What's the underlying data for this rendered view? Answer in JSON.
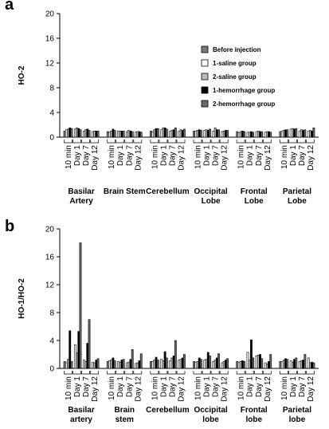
{
  "chart_data": [
    {
      "type": "bar",
      "panel": "a",
      "ylabel": "HO-2",
      "ylim": [
        0,
        20
      ],
      "yticks": [
        0,
        4,
        8,
        12,
        16,
        20
      ],
      "legend": "upper right",
      "groups": [
        "Basilar\nArtery",
        "Brain Stem",
        "Cerebellum",
        "Occipital\nLobe",
        "Frontal\nLobe",
        "Parietal\nLobe"
      ],
      "categories": [
        "10 min",
        "Day 1",
        "Day 7",
        "Day 12",
        "10 min",
        "Day 1",
        "Day 7",
        "Day 12",
        "10 min",
        "Day 1",
        "Day 7",
        "Day 12",
        "10 min",
        "Day 1",
        "Day 7",
        "Day 12",
        "10 min",
        "Day 1",
        "Day 7",
        "Day 12",
        "10 min",
        "Day 1",
        "Day 7",
        "Day 12"
      ],
      "series": [
        {
          "name": "Before injection",
          "color": "#7a7a7a",
          "values": [
            1.0,
            null,
            null,
            null,
            0.9,
            null,
            null,
            null,
            1.0,
            null,
            null,
            null,
            1.0,
            null,
            null,
            null,
            0.9,
            null,
            null,
            null,
            0.9,
            null,
            null,
            null
          ]
        },
        {
          "name": "1-saline group",
          "color": "#ffffff",
          "values": [
            1.2,
            1.3,
            1.0,
            0.9,
            0.8,
            1.0,
            0.9,
            0.8,
            0.8,
            1.2,
            1.0,
            1.0,
            1.0,
            1.1,
            1.0,
            0.9,
            0.7,
            0.8,
            0.9,
            0.8,
            1.0,
            1.3,
            1.0,
            1.0
          ]
        },
        {
          "name": "2-saline group",
          "color": "#bdbdbd",
          "values": [
            1.3,
            1.5,
            1.2,
            1.0,
            1.0,
            1.0,
            1.1,
            0.9,
            1.2,
            1.5,
            1.1,
            1.2,
            1.1,
            1.2,
            1.5,
            1.0,
            0.9,
            0.8,
            1.0,
            0.9,
            1.1,
            1.4,
            1.2,
            1.1
          ]
        },
        {
          "name": "1-hemorrhage group",
          "color": "#000000",
          "values": [
            1.5,
            1.4,
            1.3,
            1.0,
            1.3,
            1.0,
            1.0,
            0.9,
            1.4,
            1.5,
            1.2,
            1.1,
            1.2,
            1.1,
            1.2,
            1.1,
            1.0,
            0.9,
            0.9,
            0.9,
            1.2,
            1.3,
            1.1,
            1.0
          ]
        },
        {
          "name": "2-hemorrhage group",
          "color": "#6b6b6b",
          "values": [
            1.4,
            1.2,
            1.1,
            1.0,
            1.1,
            1.0,
            0.9,
            0.8,
            1.4,
            1.3,
            1.5,
            1.3,
            1.1,
            1.3,
            1.2,
            1.1,
            0.9,
            0.8,
            0.9,
            0.8,
            1.2,
            1.4,
            1.2,
            1.5
          ]
        }
      ]
    },
    {
      "type": "bar",
      "panel": "b",
      "ylabel": "HO-1/HO-2",
      "ylim": [
        0,
        20
      ],
      "yticks": [
        0,
        4,
        8,
        12,
        16,
        20
      ],
      "groups": [
        "Basilar\nartery",
        "Brain\nstem",
        "Cerebellum",
        "Occipital\nlobe",
        "Frontal\nlobe",
        "Parietal\nlobe"
      ],
      "categories": [
        "10 min",
        "Day 1",
        "Day 7",
        "Day 12",
        "10 min",
        "Day 1",
        "Day 7",
        "Day 12",
        "10 min",
        "Day 1",
        "Day 7",
        "Day 12",
        "10 min",
        "Day 1",
        "Day 7",
        "Day 12",
        "10 min",
        "Day 1",
        "Day 7",
        "Day 12",
        "10 min",
        "Day 1",
        "Day 7",
        "Day 12"
      ],
      "series": [
        {
          "color": "#7a7a7a",
          "values": [
            1.0,
            null,
            null,
            null,
            1.0,
            null,
            null,
            null,
            1.0,
            null,
            null,
            null,
            1.0,
            null,
            null,
            null,
            1.0,
            null,
            null,
            null,
            1.0,
            null,
            null,
            null
          ]
        },
        {
          "color": "#ffffff",
          "values": [
            0.8,
            3.4,
            1.2,
            0.9,
            1.1,
            1.0,
            0.8,
            0.7,
            1.0,
            1.3,
            1.1,
            1.2,
            0.9,
            1.2,
            1.0,
            0.8,
            0.9,
            2.3,
            1.8,
            0.8,
            1.0,
            1.1,
            1.0,
            1.5
          ]
        },
        {
          "color": "#bdbdbd",
          "values": [
            1.3,
            2.2,
            1.0,
            0.8,
            1.2,
            0.9,
            0.9,
            0.8,
            1.2,
            1.1,
            1.5,
            1.3,
            1.0,
            1.3,
            1.2,
            1.0,
            1.0,
            1.2,
            1.9,
            0.6,
            1.2,
            0.9,
            1.1,
            0.8
          ]
        },
        {
          "color": "#000000",
          "values": [
            5.4,
            5.3,
            3.6,
            1.2,
            1.5,
            1.2,
            1.3,
            1.1,
            1.6,
            2.4,
            1.8,
            1.5,
            1.5,
            2.3,
            1.5,
            1.2,
            1.1,
            4.1,
            2.0,
            1.0,
            1.4,
            1.3,
            1.2,
            0.9
          ]
        },
        {
          "color": "#6b6b6b",
          "values": [
            1.0,
            18.0,
            7.0,
            1.4,
            1.1,
            1.3,
            2.7,
            2.1,
            1.2,
            1.5,
            4.0,
            2.0,
            1.3,
            1.8,
            2.1,
            1.4,
            1.0,
            1.5,
            1.4,
            2.0,
            1.3,
            1.5,
            2.0,
            0.8
          ]
        }
      ]
    }
  ]
}
